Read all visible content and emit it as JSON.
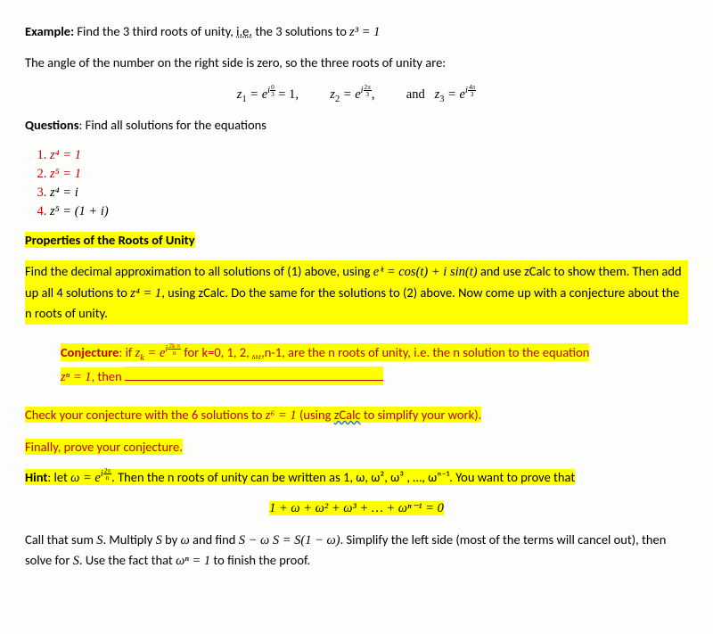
{
  "example": {
    "label": "Example:",
    "text": " Find the 3 third roots of unity, ",
    "ie": "i.e.",
    "text2": " the 3 solutions to ",
    "eq": "z³ = 1"
  },
  "intro2": "The angle of the number on the right side is zero, so the three roots of unity are:",
  "roots_line": {
    "z1a": "z",
    "z1sub": "1",
    "z1b": " = e",
    "exp1_top_i": "i",
    "exp1_top_n": "0",
    "exp1_top_d": "3",
    "z1c": " = 1,",
    "z2a": "z",
    "z2sub": "2",
    "z2b": " = e",
    "exp2_top_i": "i",
    "exp2_top_n": "2π",
    "exp2_top_d": "3",
    "comma": ",",
    "and": "and",
    "z3a": "z",
    "z3sub": "3",
    "z3b": " = e",
    "exp3_top_i": "i",
    "exp3_top_n": "4π",
    "exp3_top_d": "3"
  },
  "questions_label": "Questions",
  "questions_text": ": Find all solutions for the equations",
  "qlist": [
    "z⁴ = 1",
    "z⁵ = 1",
    "z⁴ = i",
    "z⁵ = (1 + i)"
  ],
  "prop_title": "Properties of the Roots of Unity",
  "prop_body_a": "Find the decimal approximation to all solutions of (1) above, using ",
  "prop_body_eq": "eⁱᵗ  =  cos(t) + i sin(t)",
  "prop_body_b": " and use zCalc to show them. Then add up all 4 solutions to ",
  "prop_body_eq2": "z⁴ = 1",
  "prop_body_c": ", using zCalc. Do the same for the solutions to (2) above. Now come up with a conjecture about the n roots of unity.",
  "conj": {
    "label": "Conjecture",
    "a": ": if ",
    "zk": "z",
    "zk_sub": "k",
    "eq": " = e",
    "exp_i": "i",
    "exp_n": "2k π",
    "exp_d": "n",
    "b": " for k=0, 1, 2, ",
    "dots": "…,",
    "c": "n-1, are the n roots of unity, i.e. the n solution to the equation",
    "line2a": "zⁿ = 1",
    "line2b": ", then "
  },
  "check": {
    "a": "Check your conjecture with the 6 solutions to ",
    "eq": "z⁶ = 1",
    "b": " (using ",
    "zc": "zCalc",
    "c": " to simplify your work)."
  },
  "finally": "Finally, prove your conjecture.",
  "hint": {
    "label": "Hint",
    "a": ": let ",
    "w": "ω = e",
    "exp_i": "i",
    "exp_n": "2π",
    "exp_d": "n",
    "b": ". Then the n roots of unity can be written as 1, ω, ω², ω³ , …, ωⁿ⁻¹. You want to prove that"
  },
  "hint_eq": "1 + ω + ω² + ω³ +  … +  ωⁿ⁻¹ = 0",
  "closing_a": "Call that sum ",
  "closing_s1": "S",
  "closing_b": ". Multiply ",
  "closing_s2": "S",
  "closing_c": " by ",
  "closing_w": "ω",
  "closing_d": " and find ",
  "closing_eq": "S  − ω S  = S(1 − ω)",
  "closing_e": ". Simplify the left side (most of the terms will cancel out), then solve for ",
  "closing_s3": "S",
  "closing_f": ". Use the fact that ",
  "closing_eq2": "ωⁿ  =   1",
  "closing_g": " to finish the proof."
}
